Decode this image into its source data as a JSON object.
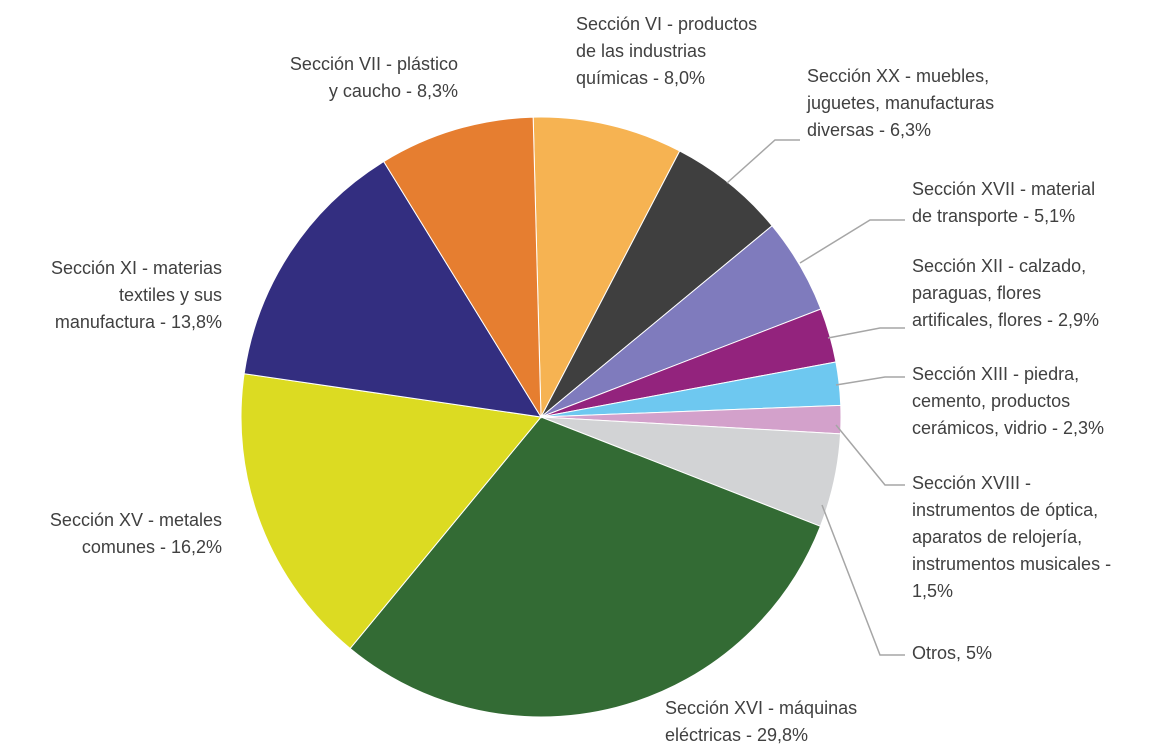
{
  "chart_data": {
    "type": "pie",
    "categories": [
      [
        "Sección VI  - productos",
        "de las industrias",
        "químicas - 8,0%"
      ],
      [
        "Sección XX  - muebles,",
        "juguetes, manufacturas",
        "diversas - 6,3%"
      ],
      [
        "Sección XVII  - material",
        "de transporte - 5,1%"
      ],
      [
        "Sección XII  - calzado,",
        "paraguas, flores",
        "artificales, flores - 2,9%"
      ],
      [
        "Sección XIII  - piedra,",
        "cemento, productos",
        "cerámicos, vidrio - 2,3%"
      ],
      [
        "Sección XVIII  -",
        "instrumentos de óptica,",
        "aparatos de relojería,",
        "instrumentos musicales -",
        "1,5%"
      ],
      [
        "Otros, 5%"
      ],
      [
        "Sección XVI  - máquinas",
        "eléctricas - 29,8%"
      ],
      [
        "Sección XV  - metales",
        "comunes - 16,2%"
      ],
      [
        "Sección XI  -  materias",
        "textiles y sus",
        "manufactura - 13,8%"
      ],
      [
        "Sección VII  - plástico",
        "y caucho - 8,3%"
      ]
    ],
    "values": [
      8.0,
      6.3,
      5.1,
      2.9,
      2.3,
      1.5,
      5,
      29.8,
      16.2,
      13.8,
      8.3
    ],
    "colors": [
      "#f6b352",
      "#3f3f3f",
      "#7f7bbd",
      "#93237d",
      "#6ec8f0",
      "#d3a1cb",
      "#d2d3d5",
      "#336b34",
      "#dcdb22",
      "#332e80",
      "#e67e30"
    ]
  }
}
